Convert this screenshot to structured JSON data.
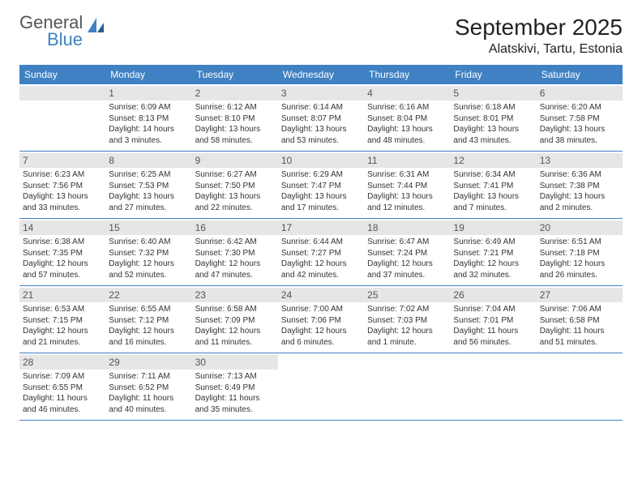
{
  "brand": {
    "line1": "General",
    "line2": "Blue",
    "line1_color": "#555555",
    "line2_color": "#3f81c3"
  },
  "title": "September 2025",
  "location": "Alatskivi, Tartu, Estonia",
  "header_bg": "#3f81c3",
  "daynum_bg": "#e6e6e6",
  "border_color": "#3f81c3",
  "dow": [
    "Sunday",
    "Monday",
    "Tuesday",
    "Wednesday",
    "Thursday",
    "Friday",
    "Saturday"
  ],
  "weeks": [
    [
      null,
      {
        "n": "1",
        "sr": "6:09 AM",
        "ss": "8:13 PM",
        "dl": "14 hours and 3 minutes."
      },
      {
        "n": "2",
        "sr": "6:12 AM",
        "ss": "8:10 PM",
        "dl": "13 hours and 58 minutes."
      },
      {
        "n": "3",
        "sr": "6:14 AM",
        "ss": "8:07 PM",
        "dl": "13 hours and 53 minutes."
      },
      {
        "n": "4",
        "sr": "6:16 AM",
        "ss": "8:04 PM",
        "dl": "13 hours and 48 minutes."
      },
      {
        "n": "5",
        "sr": "6:18 AM",
        "ss": "8:01 PM",
        "dl": "13 hours and 43 minutes."
      },
      {
        "n": "6",
        "sr": "6:20 AM",
        "ss": "7:58 PM",
        "dl": "13 hours and 38 minutes."
      }
    ],
    [
      {
        "n": "7",
        "sr": "6:23 AM",
        "ss": "7:56 PM",
        "dl": "13 hours and 33 minutes."
      },
      {
        "n": "8",
        "sr": "6:25 AM",
        "ss": "7:53 PM",
        "dl": "13 hours and 27 minutes."
      },
      {
        "n": "9",
        "sr": "6:27 AM",
        "ss": "7:50 PM",
        "dl": "13 hours and 22 minutes."
      },
      {
        "n": "10",
        "sr": "6:29 AM",
        "ss": "7:47 PM",
        "dl": "13 hours and 17 minutes."
      },
      {
        "n": "11",
        "sr": "6:31 AM",
        "ss": "7:44 PM",
        "dl": "13 hours and 12 minutes."
      },
      {
        "n": "12",
        "sr": "6:34 AM",
        "ss": "7:41 PM",
        "dl": "13 hours and 7 minutes."
      },
      {
        "n": "13",
        "sr": "6:36 AM",
        "ss": "7:38 PM",
        "dl": "13 hours and 2 minutes."
      }
    ],
    [
      {
        "n": "14",
        "sr": "6:38 AM",
        "ss": "7:35 PM",
        "dl": "12 hours and 57 minutes."
      },
      {
        "n": "15",
        "sr": "6:40 AM",
        "ss": "7:32 PM",
        "dl": "12 hours and 52 minutes."
      },
      {
        "n": "16",
        "sr": "6:42 AM",
        "ss": "7:30 PM",
        "dl": "12 hours and 47 minutes."
      },
      {
        "n": "17",
        "sr": "6:44 AM",
        "ss": "7:27 PM",
        "dl": "12 hours and 42 minutes."
      },
      {
        "n": "18",
        "sr": "6:47 AM",
        "ss": "7:24 PM",
        "dl": "12 hours and 37 minutes."
      },
      {
        "n": "19",
        "sr": "6:49 AM",
        "ss": "7:21 PM",
        "dl": "12 hours and 32 minutes."
      },
      {
        "n": "20",
        "sr": "6:51 AM",
        "ss": "7:18 PM",
        "dl": "12 hours and 26 minutes."
      }
    ],
    [
      {
        "n": "21",
        "sr": "6:53 AM",
        "ss": "7:15 PM",
        "dl": "12 hours and 21 minutes."
      },
      {
        "n": "22",
        "sr": "6:55 AM",
        "ss": "7:12 PM",
        "dl": "12 hours and 16 minutes."
      },
      {
        "n": "23",
        "sr": "6:58 AM",
        "ss": "7:09 PM",
        "dl": "12 hours and 11 minutes."
      },
      {
        "n": "24",
        "sr": "7:00 AM",
        "ss": "7:06 PM",
        "dl": "12 hours and 6 minutes."
      },
      {
        "n": "25",
        "sr": "7:02 AM",
        "ss": "7:03 PM",
        "dl": "12 hours and 1 minute."
      },
      {
        "n": "26",
        "sr": "7:04 AM",
        "ss": "7:01 PM",
        "dl": "11 hours and 56 minutes."
      },
      {
        "n": "27",
        "sr": "7:06 AM",
        "ss": "6:58 PM",
        "dl": "11 hours and 51 minutes."
      }
    ],
    [
      {
        "n": "28",
        "sr": "7:09 AM",
        "ss": "6:55 PM",
        "dl": "11 hours and 46 minutes."
      },
      {
        "n": "29",
        "sr": "7:11 AM",
        "ss": "6:52 PM",
        "dl": "11 hours and 40 minutes."
      },
      {
        "n": "30",
        "sr": "7:13 AM",
        "ss": "6:49 PM",
        "dl": "11 hours and 35 minutes."
      },
      null,
      null,
      null,
      null
    ]
  ],
  "labels": {
    "sunrise": "Sunrise:",
    "sunset": "Sunset:",
    "daylight": "Daylight:"
  }
}
